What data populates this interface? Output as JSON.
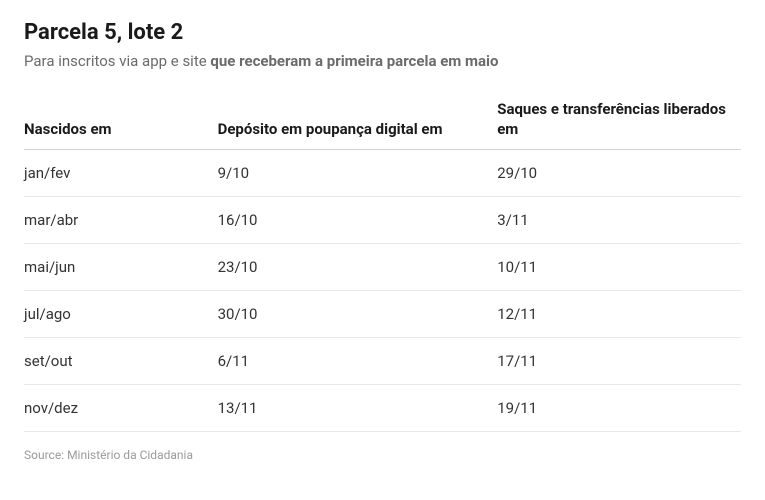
{
  "title": "Parcela 5, lote 2",
  "subtitle_prefix": "Para inscritos via app e site ",
  "subtitle_bold": "que receberam a primeira parcela em maio",
  "table": {
    "columns": [
      "Nascidos em",
      "Depósito em poupança digital em",
      "Saques e transferências liberados em"
    ],
    "rows": [
      [
        "jan/fev",
        "9/10",
        "29/10"
      ],
      [
        "mar/abr",
        "16/10",
        "3/11"
      ],
      [
        "mai/jun",
        "23/10",
        "10/11"
      ],
      [
        "jul/ago",
        "30/10",
        "12/11"
      ],
      [
        "set/out",
        "6/11",
        "17/11"
      ],
      [
        "nov/dez",
        "13/11",
        "19/11"
      ]
    ]
  },
  "source_label": "Source: ",
  "source_value": "Ministério da Cidadania"
}
